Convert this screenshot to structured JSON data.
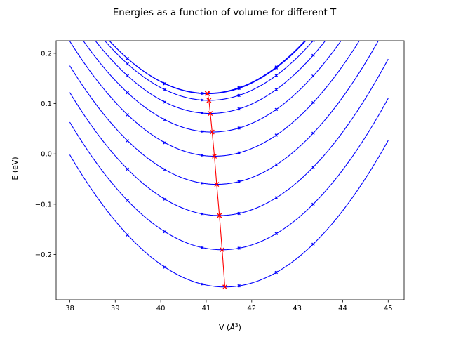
{
  "chart_data": {
    "type": "line",
    "title": "Energies as a function of volume for different T",
    "xlabel_base": "V (",
    "xlabel_unit": "Å",
    "xlabel_exp": "3",
    "xlabel_close": ")",
    "ylabel": "E (eV)",
    "xlim": [
      37.7,
      45.35
    ],
    "ylim": [
      -0.29,
      0.225
    ],
    "xticks": [
      38,
      39,
      40,
      41,
      42,
      43,
      44,
      45
    ],
    "yticks": [
      -0.2,
      -0.1,
      0.0,
      0.1,
      0.2
    ],
    "ytick_labels": [
      "−0.2",
      "−0.1",
      "0.0",
      "0.1",
      "0.2"
    ],
    "grid": false,
    "curve_color": "#0000ff",
    "min_color": "#ff0000",
    "sample_volumes": [
      39.27,
      40.09,
      40.91,
      41.72,
      42.54,
      43.35
    ],
    "series": [
      {
        "v0": 41.02,
        "e0": 0.1205,
        "b": 0.0226
      },
      {
        "v0": 41.03,
        "e0": 0.1195,
        "b": 0.0226
      },
      {
        "v0": 41.06,
        "e0": 0.1065,
        "b": 0.0226
      },
      {
        "v0": 41.09,
        "e0": 0.0805,
        "b": 0.0226
      },
      {
        "v0": 41.13,
        "e0": 0.0435,
        "b": 0.0226
      },
      {
        "v0": 41.18,
        "e0": -0.0045,
        "b": 0.0226
      },
      {
        "v0": 41.23,
        "e0": -0.0605,
        "b": 0.0226
      },
      {
        "v0": 41.29,
        "e0": -0.1225,
        "b": 0.0226
      },
      {
        "v0": 41.35,
        "e0": -0.1905,
        "b": 0.0226
      },
      {
        "v0": 41.41,
        "e0": -0.2645,
        "b": 0.0226
      }
    ]
  }
}
